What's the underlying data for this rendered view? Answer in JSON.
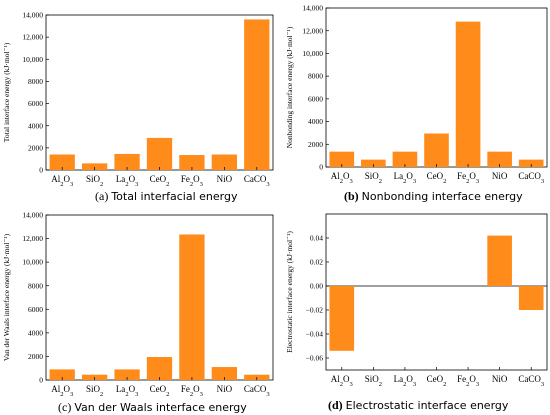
{
  "figure": {
    "bar_color": "#FF8C1A",
    "captions": [
      {
        "tag": "(a)",
        "text": "Total interfacial energy"
      },
      {
        "tag": "(b)",
        "text": "Nonbonding interface energy"
      },
      {
        "tag": "(c)",
        "text": "Van der Waals interface energy"
      },
      {
        "tag": "(d)",
        "text": "Electrostatic interface energy"
      }
    ]
  },
  "chart_data": [
    {
      "type": "bar",
      "categories": [
        "Al2O3",
        "SiO2",
        "La2O3",
        "CeO2",
        "Fe2O3",
        "NiO",
        "CaCO3"
      ],
      "values": [
        1400,
        600,
        1450,
        2900,
        1350,
        1400,
        13600
      ],
      "xlabel": "",
      "ylabel": "Total interface energy (kJ·mol⁻¹)",
      "ylim": [
        0,
        14000
      ],
      "yticks": [
        0,
        2000,
        4000,
        6000,
        8000,
        10000,
        12000,
        14000
      ],
      "ytick_labels": [
        "0",
        "2000",
        "4000",
        "6000",
        "8000",
        "10,000",
        "12,000",
        "14,000"
      ],
      "grid": false
    },
    {
      "type": "bar",
      "categories": [
        "Al2O3",
        "SiO2",
        "La2O3",
        "CeO2",
        "Fe2O3",
        "NiO",
        "CaCO3"
      ],
      "values": [
        1350,
        650,
        1350,
        2950,
        12800,
        1350,
        650
      ],
      "xlabel": "",
      "ylabel": "Nonbonding interface energy (kJ·mol⁻¹)",
      "ylim": [
        0,
        14000
      ],
      "yticks": [
        0,
        2000,
        4000,
        6000,
        8000,
        10000,
        12000,
        14000
      ],
      "ytick_labels": [
        "0",
        "2000",
        "4000",
        "6000",
        "8000",
        "10,000",
        "12,000",
        "14,000"
      ],
      "grid": false
    },
    {
      "type": "bar",
      "categories": [
        "Al2O3",
        "SiO2",
        "La2O3",
        "CeO2",
        "Fe2O3",
        "NiO",
        "CaCO3"
      ],
      "values": [
        900,
        450,
        900,
        1950,
        12350,
        1100,
        450
      ],
      "xlabel": "",
      "ylabel": "Van der Waals interface energy (kJ·mol⁻¹)",
      "ylim": [
        0,
        14000
      ],
      "yticks": [
        0,
        2000,
        4000,
        6000,
        8000,
        10000,
        12000,
        14000
      ],
      "ytick_labels": [
        "0",
        "2000",
        "4000",
        "6000",
        "8000",
        "10,000",
        "12,000",
        "14,000"
      ],
      "grid": false
    },
    {
      "type": "bar",
      "categories": [
        "Al2O3",
        "SiO2",
        "La2O3",
        "CeO2",
        "Fe2O3",
        "NiO",
        "CaCO3"
      ],
      "values": [
        -0.054,
        0,
        0,
        0,
        0,
        0.042,
        -0.02
      ],
      "xlabel": "",
      "ylabel": "Electrostatic interface energy (kJ·mol⁻¹)",
      "ylim": [
        -0.07,
        0.06
      ],
      "yticks": [
        -0.06,
        -0.04,
        -0.02,
        0.0,
        0.02,
        0.04
      ],
      "ytick_labels": [
        "−0.06",
        "−0.04",
        "−0.02",
        "0.00",
        "0.02",
        "0.04"
      ],
      "grid": false,
      "zero_line": true
    }
  ]
}
